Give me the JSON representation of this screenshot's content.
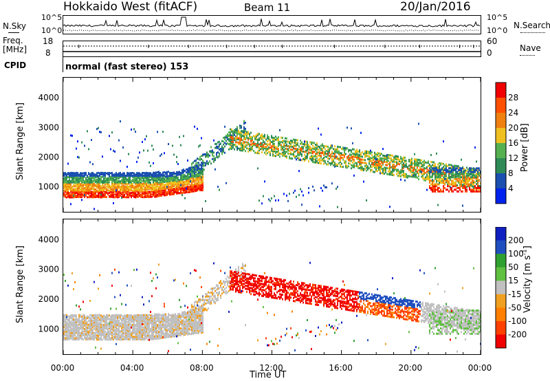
{
  "header": {
    "station": "Hokkaido West (fitACF)",
    "beam": "Beam 11",
    "date": "20/Jan/2016"
  },
  "top_panels": {
    "nsky_label": "N.Sky",
    "nsearch_label": "N.Search",
    "nsky_tick_top": "10^5",
    "nsky_tick_bottom": "10^0",
    "freq_label": "Freq.",
    "freq_unit": "[MHz]",
    "freq_tick_top": "18",
    "freq_tick_bottom": "8",
    "nave_label": "Nave",
    "nave_tick_top": "60",
    "nave_tick_bottom": "0",
    "cpid_label": "CPID",
    "cpid_value": "normal (fast stereo) 153"
  },
  "colors": {
    "power": [
      "#0022ee",
      "#1b4fb0",
      "#2e8b57",
      "#55b050",
      "#f0c020",
      "#f08010",
      "#ff5000",
      "#f00000"
    ],
    "velocity": [
      "#f00000",
      "#ff4000",
      "#ff8000",
      "#f0a020",
      "#c0c0c0",
      "#60c040",
      "#30a030",
      "#2050c0",
      "#1020c0"
    ]
  },
  "chart_data": [
    {
      "type": "heatmap",
      "name": "power",
      "ylabel": "Slant Range [km]",
      "xlabel": "",
      "x_ticks": [
        "00:00",
        "04:00",
        "08:00",
        "12:00",
        "16:00",
        "20:00",
        "00:00"
      ],
      "x_range_hours": [
        0,
        24
      ],
      "y_ticks": [
        1000,
        2000,
        3000,
        4000
      ],
      "ylim": [
        180,
        4700
      ],
      "colorbar_label": "Power [dB]",
      "colorbar_ticks": [
        "4",
        "8",
        "12",
        "16",
        "20",
        "24",
        "28"
      ],
      "colorbar_range": [
        0,
        32
      ]
    },
    {
      "type": "heatmap",
      "name": "velocity",
      "ylabel": "Slant Range [km]",
      "xlabel": "Time UT",
      "x_ticks": [
        "00:00",
        "04:00",
        "08:00",
        "12:00",
        "16:00",
        "20:00",
        "00:00"
      ],
      "x_range_hours": [
        0,
        24
      ],
      "y_ticks": [
        1000,
        2000,
        3000,
        4000
      ],
      "ylim": [
        180,
        4700
      ],
      "colorbar_label": "Velocity [m s^-1]",
      "colorbar_ticks": [
        "200",
        "100",
        "50",
        "15",
        "-15",
        "-50",
        "-100",
        "-200"
      ]
    }
  ]
}
